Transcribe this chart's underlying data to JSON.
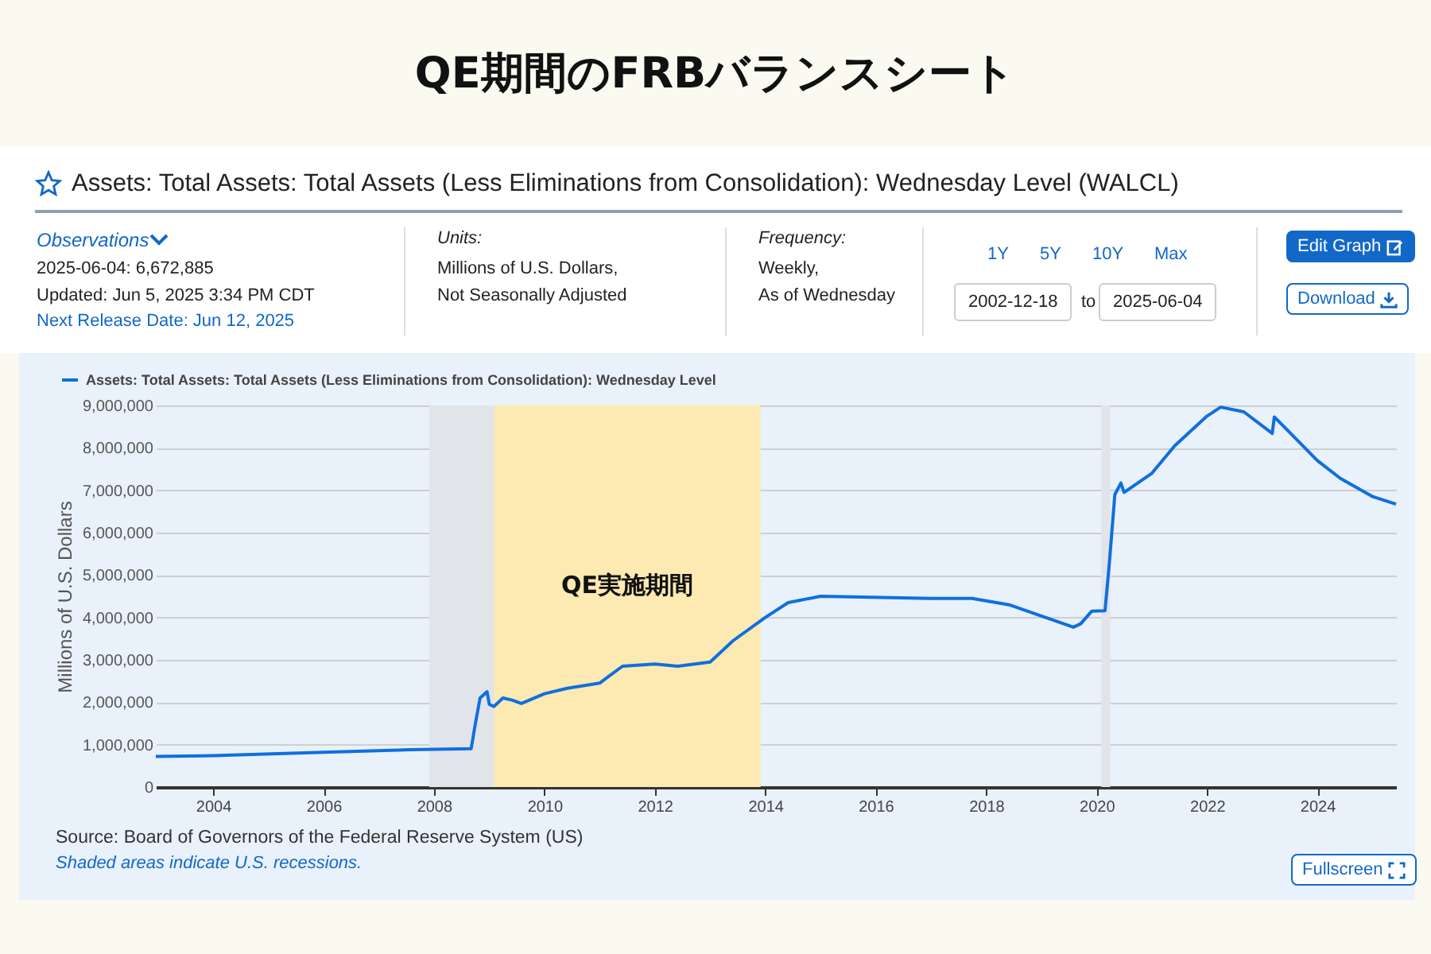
{
  "chart_data": {
    "type": "line",
    "title": "QE期間のFRBバランスシート",
    "subtitle": "Assets: Total Assets: Total Assets (Less Eliminations from Consolidation): Wednesday Level (WALCL)",
    "ylabel": "Millions of U.S. Dollars",
    "x": [
      "2002-12-18",
      "2004-01",
      "2006-01",
      "2007-08",
      "2008-09-03",
      "2008-10-01",
      "2008-11",
      "2008-12-17",
      "2009-01",
      "2009-02",
      "2009-04",
      "2009-06",
      "2009-08",
      "2010-01",
      "2010-06",
      "2011-01",
      "2011-06",
      "2012-01",
      "2012-06",
      "2013-01",
      "2013-06",
      "2014-01",
      "2014-06",
      "2015-01",
      "2017-01",
      "2017-10",
      "2018-06",
      "2019-08",
      "2019-09-18",
      "2019-12",
      "2020-02-26",
      "2020-03-25",
      "2020-05",
      "2020-06-10",
      "2020-07",
      "2021-01",
      "2021-06",
      "2022-01",
      "2022-04",
      "2022-09",
      "2023-03-08",
      "2023-03-22",
      "2024-01",
      "2024-06",
      "2025-01",
      "2025-06-04"
    ],
    "series": [
      {
        "name": "Assets: Total Assets: Total Assets (Less Eliminations from Consolidation): Wednesday Level",
        "color": "#0f6fde",
        "values": [
          720000,
          740000,
          820000,
          880000,
          905000,
          1500000,
          2100000,
          2250000,
          1950000,
          1900000,
          2100000,
          2050000,
          1970000,
          2200000,
          2330000,
          2450000,
          2850000,
          2900000,
          2850000,
          2950000,
          3450000,
          4000000,
          4350000,
          4500000,
          4450000,
          4450000,
          4300000,
          3770000,
          3850000,
          4150000,
          4160000,
          5250000,
          6900000,
          7170000,
          6950000,
          7400000,
          8050000,
          8750000,
          8960000,
          8850000,
          8340000,
          8730000,
          7700000,
          7280000,
          6850000,
          6672885
        ]
      }
    ],
    "xlim": [
      "2002-12-18",
      "2025-06-04"
    ],
    "xticks": [
      "2004",
      "2006",
      "2008",
      "2010",
      "2012",
      "2014",
      "2016",
      "2018",
      "2020",
      "2022",
      "2024"
    ],
    "ylim": [
      0,
      9000000
    ],
    "yticks": [
      0,
      {
        "value": 1000000,
        "label": "1,000,000"
      },
      {
        "value": 2000000,
        "label": "2,000,000"
      },
      {
        "value": 3000000,
        "label": "3,000,000"
      },
      {
        "value": 4000000,
        "label": "4,000,000"
      },
      {
        "value": 5000000,
        "label": "5,000,000"
      },
      {
        "value": 6000000,
        "label": "6,000,000"
      },
      {
        "value": 7000000,
        "label": "7,000,000"
      },
      {
        "value": 8000000,
        "label": "8,000,000"
      },
      {
        "value": 9000000,
        "label": "9,000,000"
      }
    ],
    "bands": [
      {
        "axis": "x",
        "from": "2007-12",
        "to": "2009-06",
        "color": "#e1e5ea"
      },
      {
        "axis": "x",
        "from": "2020-02",
        "to": "2020-04",
        "color": "#e1e5ea"
      },
      {
        "axis": "x",
        "from": "2009-02",
        "to": "2013-12",
        "color": "#fde9b2",
        "label": "QE実施期間"
      }
    ],
    "grid": "y",
    "legend": "top left",
    "marker": "none",
    "line_style": "solid",
    "annotations": [
      "Observations",
      "2025-06-04: 6,672,885",
      "Updated: Jun 5, 2025 3:34 PM CDT",
      "Next Release Date: Jun 12, 2025",
      "Units:",
      "Millions of U.S. Dollars,",
      "Not Seasonally Adjusted",
      "Frequency:",
      "Weekly,",
      "As of Wednesday",
      "1Y",
      "5Y",
      "10Y",
      "Max",
      "2002-12-18",
      "to",
      "2025-06-04",
      "Edit Graph",
      "Download",
      "Source: Board of Governors of the Federal Reserve System (US)",
      "Shaded areas indicate U.S. recessions.",
      "Fullscreen"
    ]
  }
}
